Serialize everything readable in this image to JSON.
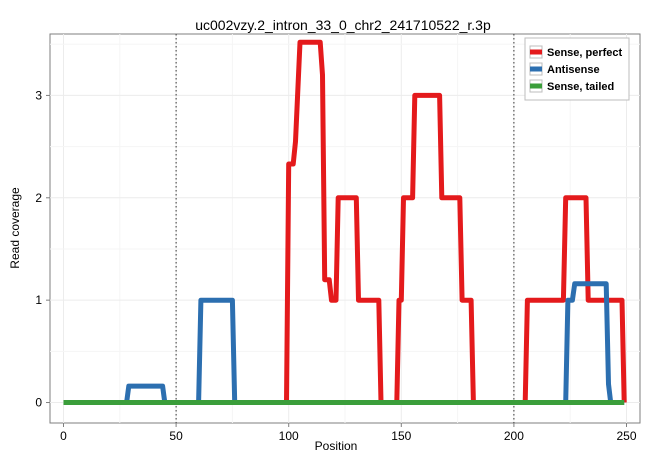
{
  "chart_data": {
    "type": "line",
    "title": "uc002vzy.2_intron_33_0_chr2_241710522_r.3p",
    "xlabel": "Position",
    "ylabel": "Read coverage",
    "xlim": [
      -6,
      256
    ],
    "ylim": [
      -0.2,
      3.6
    ],
    "xticks": [
      0,
      50,
      100,
      150,
      200,
      250
    ],
    "yticks": [
      0,
      1,
      2,
      3
    ],
    "vlines": [
      50,
      200
    ],
    "grid": true,
    "legend_position": "top-right",
    "series": [
      {
        "name": "Sense, perfect",
        "color": "#e41a1c",
        "points": [
          [
            0,
            0
          ],
          [
            99,
            0
          ],
          [
            100,
            2.33
          ],
          [
            102,
            2.33
          ],
          [
            103,
            2.55
          ],
          [
            105,
            3.52
          ],
          [
            114,
            3.52
          ],
          [
            115,
            3.2
          ],
          [
            116,
            1.2
          ],
          [
            118,
            1.2
          ],
          [
            119,
            1.0
          ],
          [
            121,
            1.0
          ],
          [
            122,
            2.0
          ],
          [
            130,
            2.0
          ],
          [
            131,
            1.0
          ],
          [
            140,
            1.0
          ],
          [
            141,
            0
          ],
          [
            148,
            0
          ],
          [
            149,
            1.0
          ],
          [
            150,
            1.0
          ],
          [
            151,
            2.0
          ],
          [
            155,
            2.0
          ],
          [
            156,
            3.0
          ],
          [
            163,
            3.0
          ],
          [
            167,
            3.0
          ],
          [
            168,
            2.0
          ],
          [
            176,
            2.0
          ],
          [
            177,
            1.0
          ],
          [
            181,
            1.0
          ],
          [
            182,
            0
          ],
          [
            205,
            0
          ],
          [
            206,
            1.0
          ],
          [
            222,
            1.0
          ],
          [
            223,
            2.0
          ],
          [
            232,
            2.0
          ],
          [
            233,
            1.0
          ],
          [
            248,
            1.0
          ],
          [
            249,
            0
          ]
        ]
      },
      {
        "name": "Antisense",
        "color": "#2c6fb0",
        "points": [
          [
            0,
            0
          ],
          [
            28,
            0
          ],
          [
            29,
            0.16
          ],
          [
            44,
            0.16
          ],
          [
            45,
            0
          ],
          [
            60,
            0
          ],
          [
            61,
            1.0
          ],
          [
            75,
            1.0
          ],
          [
            76,
            0
          ],
          [
            223,
            0
          ],
          [
            224,
            1.0
          ],
          [
            226,
            1.0
          ],
          [
            227,
            1.16
          ],
          [
            241,
            1.16
          ],
          [
            242,
            0.18
          ],
          [
            243,
            0
          ],
          [
            249,
            0
          ]
        ]
      },
      {
        "name": "Sense, tailed",
        "color": "#3b9e3b",
        "points": [
          [
            0,
            0
          ],
          [
            249,
            0
          ]
        ]
      }
    ]
  }
}
